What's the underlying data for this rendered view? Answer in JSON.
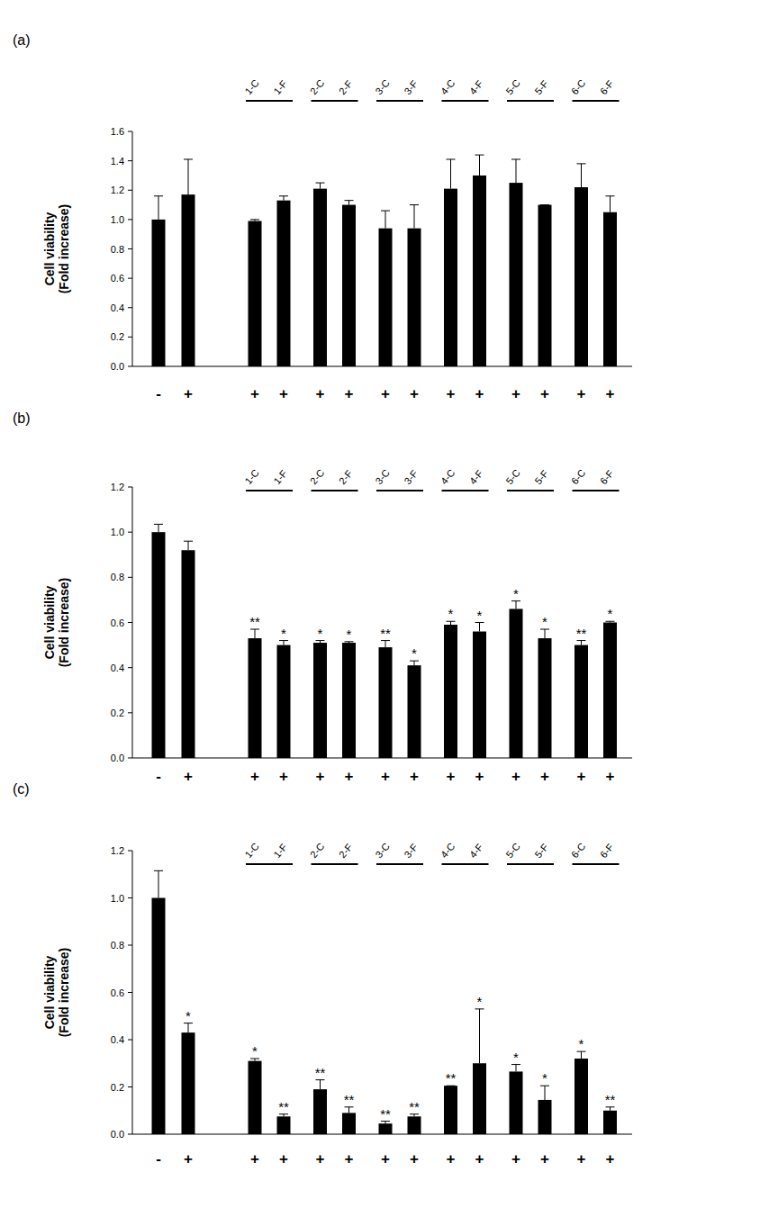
{
  "chart_data": [
    {
      "type": "bar",
      "panel": "(a)",
      "ylabel": [
        "Cell viability",
        "(Fold increase)"
      ],
      "categories": [
        "-",
        "+",
        "+",
        "+",
        "+",
        "+",
        "+",
        "+",
        "+",
        "+",
        "+",
        "+",
        "+",
        "+"
      ],
      "bar_labels": [
        null,
        null,
        "1-C",
        "1-F",
        "2-C",
        "2-F",
        "3-C",
        "3-F",
        "4-C",
        "4-F",
        "5-C",
        "5-F",
        "6-C",
        "6-F"
      ],
      "values": [
        1.0,
        1.17,
        0.99,
        1.13,
        1.21,
        1.1,
        0.94,
        0.94,
        1.21,
        1.3,
        1.25,
        1.1,
        1.22,
        1.05
      ],
      "errors": [
        0.16,
        0.24,
        0.01,
        0.03,
        0.04,
        0.03,
        0.12,
        0.16,
        0.2,
        0.14,
        0.16,
        0.0,
        0.16,
        0.11
      ],
      "significance": [
        null,
        null,
        null,
        null,
        null,
        null,
        null,
        null,
        null,
        null,
        null,
        null,
        null,
        null
      ],
      "color": "#000000",
      "ylim": [
        0,
        1.6
      ],
      "yticks": [
        {
          "value": 0,
          "label": "0.0"
        },
        {
          "value": 0.2,
          "label": "0.2"
        },
        {
          "value": 0.4,
          "label": "0.4"
        },
        {
          "value": 0.6,
          "label": "0.6"
        },
        {
          "value": 0.8,
          "label": "0.8"
        },
        {
          "value": 1.0,
          "label": "1.0"
        },
        {
          "value": 1.2,
          "label": "1.2"
        },
        {
          "value": 1.4,
          "label": "1.4"
        },
        {
          "value": 1.6,
          "label": "1.6"
        }
      ]
    },
    {
      "type": "bar",
      "panel": "(b)",
      "ylabel": [
        "Cell viability",
        "(Fold increase)"
      ],
      "categories": [
        "-",
        "+",
        "+",
        "+",
        "+",
        "+",
        "+",
        "+",
        "+",
        "+",
        "+",
        "+",
        "+",
        "+"
      ],
      "bar_labels": [
        null,
        null,
        "1-C",
        "1-F",
        "2-C",
        "2-F",
        "3-C",
        "3-F",
        "4-C",
        "4-F",
        "5-C",
        "5-F",
        "6-C",
        "6-F"
      ],
      "values": [
        1.0,
        0.92,
        0.53,
        0.5,
        0.51,
        0.51,
        0.49,
        0.41,
        0.59,
        0.56,
        0.66,
        0.53,
        0.5,
        0.6
      ],
      "errors": [
        0.035,
        0.04,
        0.04,
        0.02,
        0.01,
        0.005,
        0.03,
        0.02,
        0.015,
        0.04,
        0.035,
        0.04,
        0.02,
        0.005
      ],
      "significance": [
        null,
        null,
        "**",
        "*",
        "*",
        "*",
        "**",
        "*",
        "*",
        "*",
        "*",
        "*",
        "**",
        "*"
      ],
      "color": "#000000",
      "ylim": [
        0,
        1.2
      ],
      "yticks": [
        {
          "value": 0,
          "label": "0.0"
        },
        {
          "value": 0.2,
          "label": "0.2"
        },
        {
          "value": 0.4,
          "label": "0.4"
        },
        {
          "value": 0.6,
          "label": "0.6"
        },
        {
          "value": 0.8,
          "label": "0.8"
        },
        {
          "value": 1.0,
          "label": "1.0"
        },
        {
          "value": 1.2,
          "label": "1.2"
        }
      ]
    },
    {
      "type": "bar",
      "panel": "(c)",
      "ylabel": [
        "Cell viability",
        "(Fold increase)"
      ],
      "categories": [
        "-",
        "+",
        "+",
        "+",
        "+",
        "+",
        "+",
        "+",
        "+",
        "+",
        "+",
        "+",
        "+",
        "+"
      ],
      "bar_labels": [
        null,
        null,
        "1-C",
        "1-F",
        "2-C",
        "2-F",
        "3-C",
        "3-F",
        "4-C",
        "4-F",
        "5-C",
        "5-F",
        "6-C",
        "6-F"
      ],
      "values": [
        1.0,
        0.43,
        0.31,
        0.075,
        0.19,
        0.09,
        0.045,
        0.075,
        0.205,
        0.3,
        0.265,
        0.145,
        0.32,
        0.1
      ],
      "errors": [
        0.115,
        0.04,
        0.01,
        0.01,
        0.04,
        0.025,
        0.01,
        0.01,
        0.0,
        0.23,
        0.03,
        0.06,
        0.03,
        0.015
      ],
      "significance": [
        null,
        "*",
        "*",
        "**",
        "**",
        "**",
        "**",
        "**",
        "**",
        "*",
        "*",
        "*",
        "*",
        "**"
      ],
      "color": "#000000",
      "ylim": [
        0,
        1.2
      ],
      "yticks": [
        {
          "value": 0,
          "label": "0.0"
        },
        {
          "value": 0.2,
          "label": "0.2"
        },
        {
          "value": 0.4,
          "label": "0.4"
        },
        {
          "value": 0.6,
          "label": "0.6"
        },
        {
          "value": 0.8,
          "label": "0.8"
        },
        {
          "value": 1.0,
          "label": "1.0"
        },
        {
          "value": 1.2,
          "label": "1.2"
        }
      ]
    }
  ]
}
